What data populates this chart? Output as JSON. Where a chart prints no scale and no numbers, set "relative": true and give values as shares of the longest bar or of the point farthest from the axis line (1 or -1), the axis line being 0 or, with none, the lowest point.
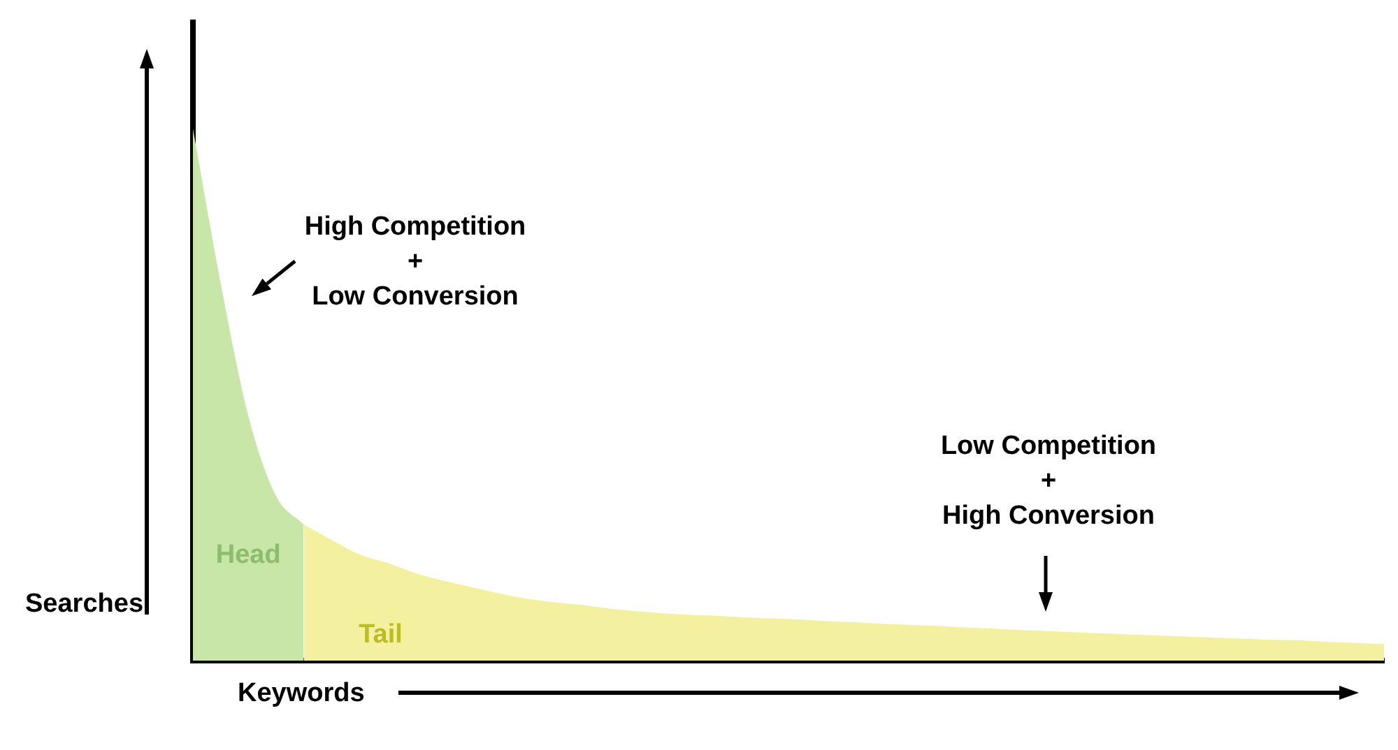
{
  "chart_data": {
    "type": "area",
    "relative": true,
    "xlabel": "Keywords",
    "ylabel": "Searches",
    "categories": [
      null,
      null,
      null,
      null,
      null,
      null,
      null,
      null,
      null,
      null,
      null,
      null,
      null,
      null,
      null,
      null,
      null,
      null,
      null,
      null,
      null,
      null,
      null,
      null,
      null,
      null,
      null,
      null,
      null,
      null,
      null,
      null,
      null,
      null,
      null,
      null,
      null,
      null,
      null,
      null,
      null,
      null,
      null,
      null
    ],
    "series": [
      {
        "name": "Head",
        "color": "#c8e6a8",
        "values": [
          1.0,
          0.71,
          0.46,
          0.31,
          0.256,
          null,
          null,
          null,
          null,
          null,
          null,
          null,
          null,
          null,
          null,
          null,
          null,
          null,
          null,
          null,
          null,
          null,
          null,
          null,
          null,
          null,
          null,
          null,
          null,
          null,
          null,
          null,
          null,
          null,
          null,
          null,
          null,
          null,
          null,
          null,
          null,
          null,
          null,
          null
        ]
      },
      {
        "name": "Tail",
        "color": "#f3f1a0",
        "values": [
          null,
          null,
          null,
          null,
          0.256,
          0.227,
          0.2,
          0.184,
          0.165,
          0.151,
          0.139,
          0.127,
          0.117,
          0.11,
          0.105,
          0.098,
          0.093,
          0.089,
          0.086,
          0.084,
          0.081,
          0.079,
          0.077,
          0.074,
          0.072,
          0.069,
          0.067,
          0.065,
          0.062,
          0.06,
          0.057,
          0.055,
          0.053,
          0.051,
          0.049,
          0.047,
          0.045,
          0.043,
          0.041,
          0.039,
          0.038,
          0.035,
          0.033,
          0.031
        ]
      }
    ],
    "annotations": [
      "High Competition\n+\nLow Conversion",
      "Low Competition\n+\nHigh Conversion"
    ],
    "legend": false
  }
}
